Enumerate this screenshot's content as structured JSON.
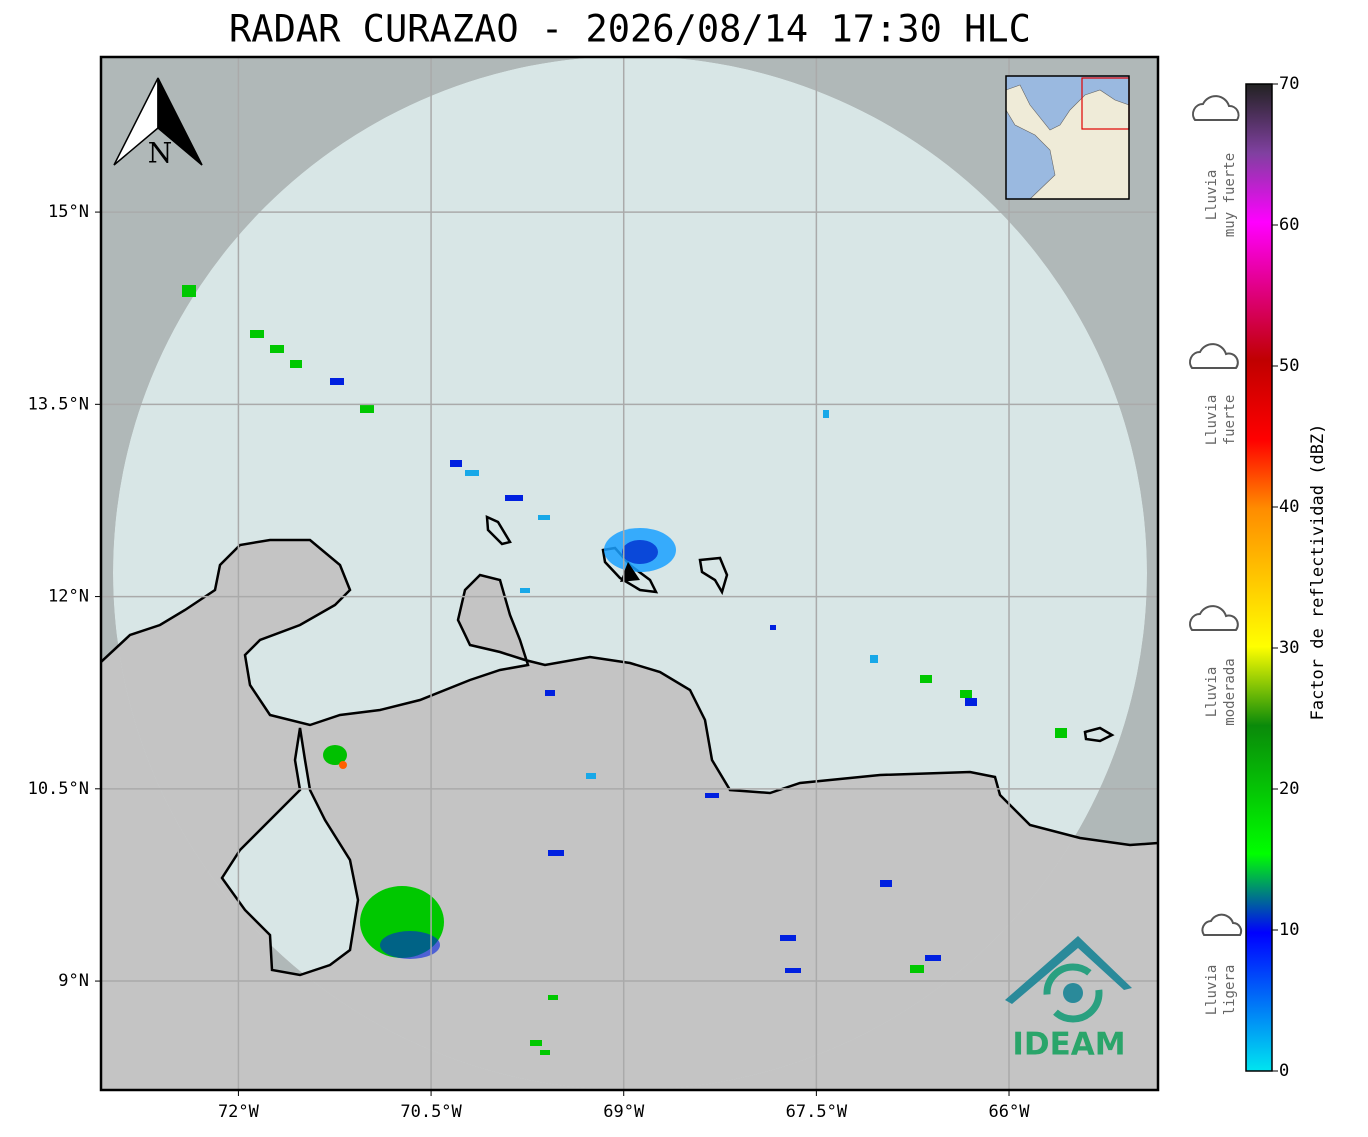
{
  "chart_data": {
    "type": "map",
    "title": "RADAR CURAZAO - 2026/08/14 17:30 HLC",
    "xlim": [
      -73.07,
      -64.84
    ],
    "ylim": [
      8.15,
      16.21
    ],
    "xticks": [
      {
        "value": -72,
        "label": "72°W"
      },
      {
        "value": -70.5,
        "label": "70.5°W"
      },
      {
        "value": -69,
        "label": "69°W"
      },
      {
        "value": -67.5,
        "label": "67.5°W"
      },
      {
        "value": -66,
        "label": "66°W"
      }
    ],
    "yticks": [
      {
        "value": 9,
        "label": "9°N"
      },
      {
        "value": 10.5,
        "label": "10.5°N"
      },
      {
        "value": 12,
        "label": "12°N"
      },
      {
        "value": 13.5,
        "label": "13.5°N"
      },
      {
        "value": 15,
        "label": "15°N"
      }
    ],
    "grid": true,
    "north_label": "N",
    "colorbar": {
      "label": "Factor de reflectividad (dBZ)",
      "clim": [
        0,
        70
      ],
      "ticks": [
        0,
        10,
        20,
        30,
        40,
        50,
        60,
        70
      ]
    },
    "legend": [
      [
        "Lluvia",
        "muy fuerte"
      ],
      [
        "Lluvia",
        "fuerte"
      ],
      [
        "Lluvia",
        "moderada"
      ],
      [
        "Lluvia",
        "ligera"
      ]
    ],
    "logo": "IDEAM"
  }
}
